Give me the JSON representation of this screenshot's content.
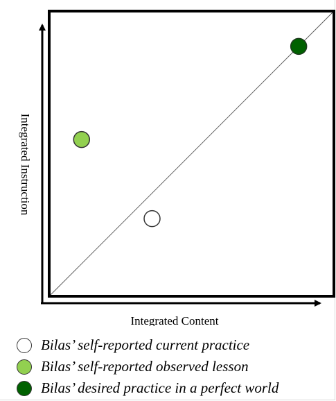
{
  "axes": {
    "x_label": "Integrated Content",
    "y_label": "Integrated Instruction"
  },
  "points": [
    {
      "id": "current",
      "x": 0.36,
      "y": 0.27,
      "color": "#ffffff",
      "stroke": "#333333"
    },
    {
      "id": "observed",
      "x": 0.11,
      "y": 0.55,
      "color": "#92d050",
      "stroke": "#333333"
    },
    {
      "id": "desired",
      "x": 0.88,
      "y": 0.88,
      "color": "#006100",
      "stroke": "#1f3b1f"
    }
  ],
  "legend": [
    {
      "label": "Bilas’ self-reported current practice",
      "color": "#ffffff"
    },
    {
      "label": "Bilas’ self-reported observed lesson",
      "color": "#92d050"
    },
    {
      "label": "Bilas’ desired practice in a perfect world",
      "color": "#006100"
    }
  ]
}
